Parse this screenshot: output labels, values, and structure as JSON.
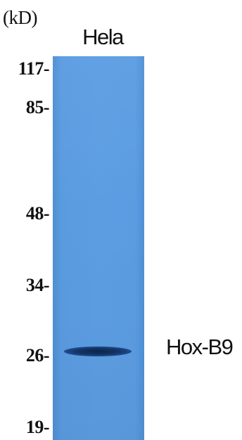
{
  "unit_label": "(kD)",
  "lane_label": "Hela",
  "target_label": "Hox-B9",
  "markers": [
    "117-",
    "85-",
    "48-",
    "34-",
    "26-",
    "19-"
  ],
  "colors": {
    "membrane": "#5c9de2",
    "band": "#143468"
  }
}
